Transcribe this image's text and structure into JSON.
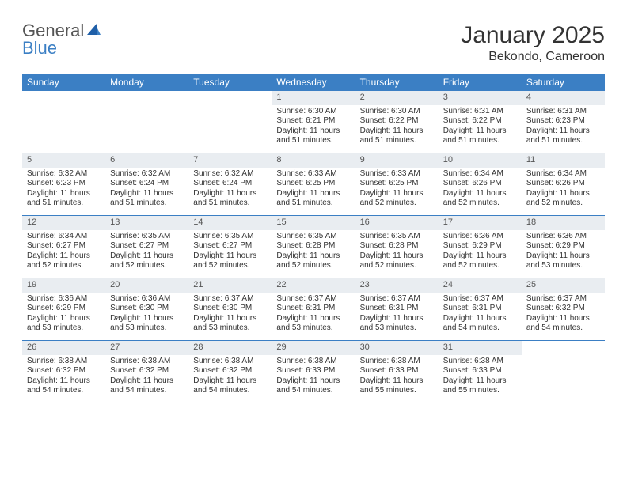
{
  "brand": {
    "text1": "General",
    "text2": "Blue"
  },
  "title": "January 2025",
  "location": "Bekondo, Cameroon",
  "colors": {
    "header_bg": "#3b7fc4",
    "header_text": "#ffffff",
    "daynum_bg": "#e9edf1",
    "rule": "#3b7fc4",
    "body_text": "#333333"
  },
  "day_names": [
    "Sunday",
    "Monday",
    "Tuesday",
    "Wednesday",
    "Thursday",
    "Friday",
    "Saturday"
  ],
  "weeks": [
    [
      {
        "n": "",
        "sr": "",
        "ss": "",
        "dl": ""
      },
      {
        "n": "",
        "sr": "",
        "ss": "",
        "dl": ""
      },
      {
        "n": "",
        "sr": "",
        "ss": "",
        "dl": ""
      },
      {
        "n": "1",
        "sr": "Sunrise: 6:30 AM",
        "ss": "Sunset: 6:21 PM",
        "dl": "Daylight: 11 hours and 51 minutes."
      },
      {
        "n": "2",
        "sr": "Sunrise: 6:30 AM",
        "ss": "Sunset: 6:22 PM",
        "dl": "Daylight: 11 hours and 51 minutes."
      },
      {
        "n": "3",
        "sr": "Sunrise: 6:31 AM",
        "ss": "Sunset: 6:22 PM",
        "dl": "Daylight: 11 hours and 51 minutes."
      },
      {
        "n": "4",
        "sr": "Sunrise: 6:31 AM",
        "ss": "Sunset: 6:23 PM",
        "dl": "Daylight: 11 hours and 51 minutes."
      }
    ],
    [
      {
        "n": "5",
        "sr": "Sunrise: 6:32 AM",
        "ss": "Sunset: 6:23 PM",
        "dl": "Daylight: 11 hours and 51 minutes."
      },
      {
        "n": "6",
        "sr": "Sunrise: 6:32 AM",
        "ss": "Sunset: 6:24 PM",
        "dl": "Daylight: 11 hours and 51 minutes."
      },
      {
        "n": "7",
        "sr": "Sunrise: 6:32 AM",
        "ss": "Sunset: 6:24 PM",
        "dl": "Daylight: 11 hours and 51 minutes."
      },
      {
        "n": "8",
        "sr": "Sunrise: 6:33 AM",
        "ss": "Sunset: 6:25 PM",
        "dl": "Daylight: 11 hours and 51 minutes."
      },
      {
        "n": "9",
        "sr": "Sunrise: 6:33 AM",
        "ss": "Sunset: 6:25 PM",
        "dl": "Daylight: 11 hours and 52 minutes."
      },
      {
        "n": "10",
        "sr": "Sunrise: 6:34 AM",
        "ss": "Sunset: 6:26 PM",
        "dl": "Daylight: 11 hours and 52 minutes."
      },
      {
        "n": "11",
        "sr": "Sunrise: 6:34 AM",
        "ss": "Sunset: 6:26 PM",
        "dl": "Daylight: 11 hours and 52 minutes."
      }
    ],
    [
      {
        "n": "12",
        "sr": "Sunrise: 6:34 AM",
        "ss": "Sunset: 6:27 PM",
        "dl": "Daylight: 11 hours and 52 minutes."
      },
      {
        "n": "13",
        "sr": "Sunrise: 6:35 AM",
        "ss": "Sunset: 6:27 PM",
        "dl": "Daylight: 11 hours and 52 minutes."
      },
      {
        "n": "14",
        "sr": "Sunrise: 6:35 AM",
        "ss": "Sunset: 6:27 PM",
        "dl": "Daylight: 11 hours and 52 minutes."
      },
      {
        "n": "15",
        "sr": "Sunrise: 6:35 AM",
        "ss": "Sunset: 6:28 PM",
        "dl": "Daylight: 11 hours and 52 minutes."
      },
      {
        "n": "16",
        "sr": "Sunrise: 6:35 AM",
        "ss": "Sunset: 6:28 PM",
        "dl": "Daylight: 11 hours and 52 minutes."
      },
      {
        "n": "17",
        "sr": "Sunrise: 6:36 AM",
        "ss": "Sunset: 6:29 PM",
        "dl": "Daylight: 11 hours and 52 minutes."
      },
      {
        "n": "18",
        "sr": "Sunrise: 6:36 AM",
        "ss": "Sunset: 6:29 PM",
        "dl": "Daylight: 11 hours and 53 minutes."
      }
    ],
    [
      {
        "n": "19",
        "sr": "Sunrise: 6:36 AM",
        "ss": "Sunset: 6:29 PM",
        "dl": "Daylight: 11 hours and 53 minutes."
      },
      {
        "n": "20",
        "sr": "Sunrise: 6:36 AM",
        "ss": "Sunset: 6:30 PM",
        "dl": "Daylight: 11 hours and 53 minutes."
      },
      {
        "n": "21",
        "sr": "Sunrise: 6:37 AM",
        "ss": "Sunset: 6:30 PM",
        "dl": "Daylight: 11 hours and 53 minutes."
      },
      {
        "n": "22",
        "sr": "Sunrise: 6:37 AM",
        "ss": "Sunset: 6:31 PM",
        "dl": "Daylight: 11 hours and 53 minutes."
      },
      {
        "n": "23",
        "sr": "Sunrise: 6:37 AM",
        "ss": "Sunset: 6:31 PM",
        "dl": "Daylight: 11 hours and 53 minutes."
      },
      {
        "n": "24",
        "sr": "Sunrise: 6:37 AM",
        "ss": "Sunset: 6:31 PM",
        "dl": "Daylight: 11 hours and 54 minutes."
      },
      {
        "n": "25",
        "sr": "Sunrise: 6:37 AM",
        "ss": "Sunset: 6:32 PM",
        "dl": "Daylight: 11 hours and 54 minutes."
      }
    ],
    [
      {
        "n": "26",
        "sr": "Sunrise: 6:38 AM",
        "ss": "Sunset: 6:32 PM",
        "dl": "Daylight: 11 hours and 54 minutes."
      },
      {
        "n": "27",
        "sr": "Sunrise: 6:38 AM",
        "ss": "Sunset: 6:32 PM",
        "dl": "Daylight: 11 hours and 54 minutes."
      },
      {
        "n": "28",
        "sr": "Sunrise: 6:38 AM",
        "ss": "Sunset: 6:32 PM",
        "dl": "Daylight: 11 hours and 54 minutes."
      },
      {
        "n": "29",
        "sr": "Sunrise: 6:38 AM",
        "ss": "Sunset: 6:33 PM",
        "dl": "Daylight: 11 hours and 54 minutes."
      },
      {
        "n": "30",
        "sr": "Sunrise: 6:38 AM",
        "ss": "Sunset: 6:33 PM",
        "dl": "Daylight: 11 hours and 55 minutes."
      },
      {
        "n": "31",
        "sr": "Sunrise: 6:38 AM",
        "ss": "Sunset: 6:33 PM",
        "dl": "Daylight: 11 hours and 55 minutes."
      },
      {
        "n": "",
        "sr": "",
        "ss": "",
        "dl": ""
      }
    ]
  ]
}
